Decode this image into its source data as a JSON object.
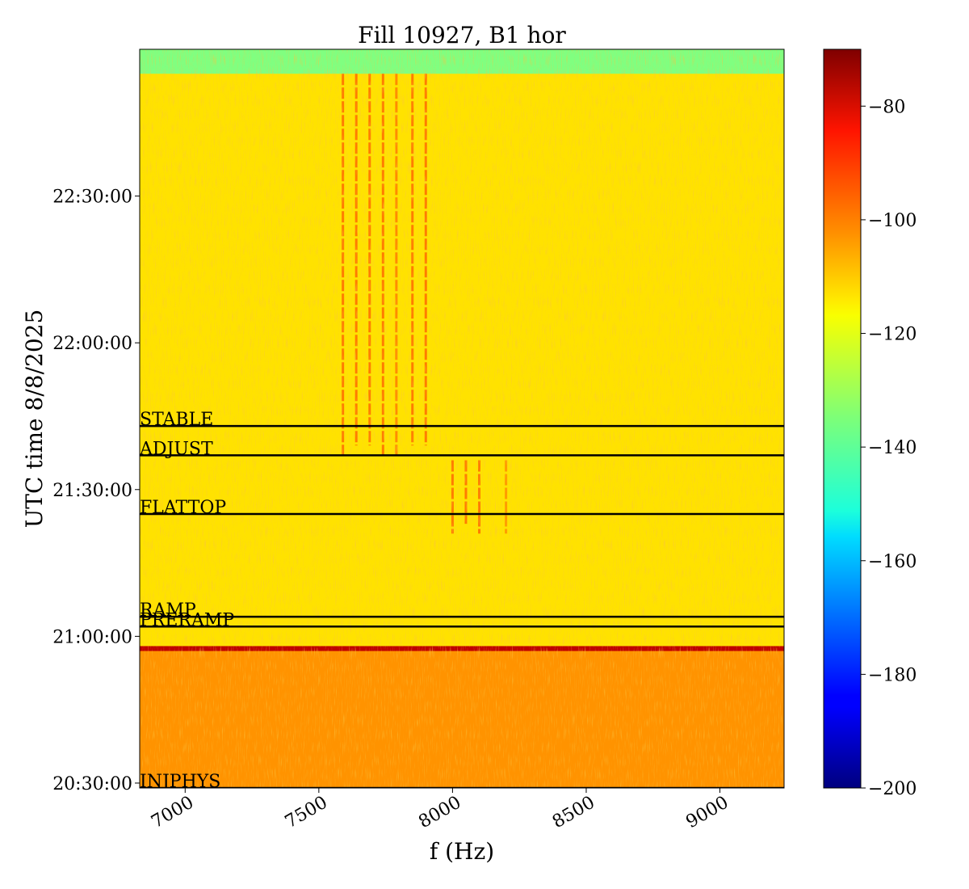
{
  "chart_data": {
    "type": "heatmap",
    "title": "Fill 10927, B1 hor",
    "xlabel": "f (Hz)",
    "ylabel": "UTC time 8/8/2025",
    "xlim": [
      6830,
      9240
    ],
    "ylim": [
      "20:29:00",
      "23:00:00"
    ],
    "x_ticks": [
      7000,
      7500,
      8000,
      8500,
      9000
    ],
    "y_ticks": [
      "20:30:00",
      "21:00:00",
      "21:30:00",
      "22:00:00",
      "22:30:00"
    ],
    "colorbar": {
      "colormap": "jet",
      "range": [
        -200,
        -70
      ],
      "ticks": [
        -80,
        -100,
        -120,
        -140,
        -160,
        -180,
        -200
      ]
    },
    "background_level": -115,
    "regions": [
      {
        "from": "22:55:00",
        "to": "23:00:00",
        "level": -135
      },
      {
        "from": "20:29:00",
        "to": "20:58:00",
        "level": -105
      },
      {
        "from": "20:57:00",
        "to": "20:58:00",
        "level": -78
      }
    ],
    "beam_modes": [
      {
        "label": "STABLE",
        "time": "21:43:00"
      },
      {
        "label": "ADJUST",
        "time": "21:37:00"
      },
      {
        "label": "FLATTOP",
        "time": "21:25:00"
      },
      {
        "label": "RAMP",
        "time": "21:04:00"
      },
      {
        "label": "PRERAMP",
        "time": "21:02:00"
      },
      {
        "label": "INJPHYS",
        "time": "20:29:00"
      }
    ],
    "spectral_lines": [
      {
        "f": 7590,
        "from": "21:37:00",
        "to": "22:55:00",
        "level": -102
      },
      {
        "f": 7640,
        "from": "21:39:00",
        "to": "22:55:00",
        "level": -102
      },
      {
        "f": 7690,
        "from": "21:39:00",
        "to": "22:55:00",
        "level": -102
      },
      {
        "f": 7740,
        "from": "21:37:00",
        "to": "22:55:00",
        "level": -102
      },
      {
        "f": 7790,
        "from": "21:37:00",
        "to": "22:55:00",
        "level": -104
      },
      {
        "f": 7850,
        "from": "21:39:00",
        "to": "22:55:00",
        "level": -102
      },
      {
        "f": 7900,
        "from": "21:39:00",
        "to": "22:55:00",
        "level": -102
      },
      {
        "f": 8000,
        "from": "21:21:00",
        "to": "21:36:00",
        "level": -102
      },
      {
        "f": 8050,
        "from": "21:23:00",
        "to": "21:36:00",
        "level": -102
      },
      {
        "f": 8100,
        "from": "21:21:00",
        "to": "21:36:00",
        "level": -102
      },
      {
        "f": 8200,
        "from": "21:21:00",
        "to": "21:36:00",
        "level": -106
      }
    ],
    "grid": false
  }
}
